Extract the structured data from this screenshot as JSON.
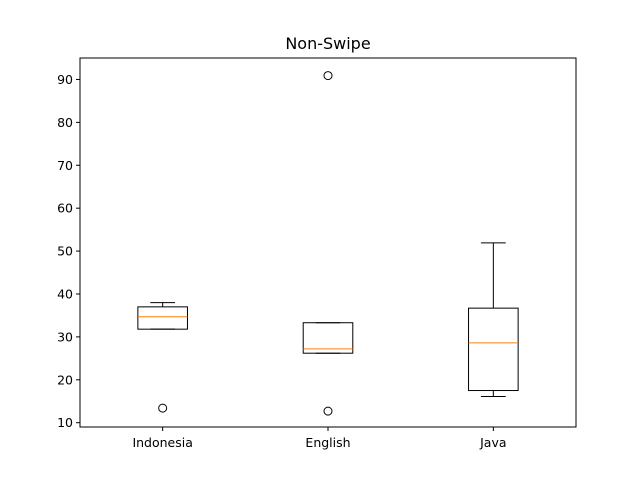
{
  "chart_data": {
    "type": "box",
    "title": "Non-Swipe",
    "xlabel": "",
    "ylabel": "",
    "categories": [
      "Indonesia",
      "English",
      "Java"
    ],
    "ylim": [
      9,
      95
    ],
    "yticks": [
      10,
      20,
      30,
      40,
      50,
      60,
      70,
      80,
      90
    ],
    "boxes": [
      {
        "name": "Indonesia",
        "whisker_low": 31.8,
        "q1": 31.8,
        "median": 34.7,
        "q3": 37.0,
        "whisker_high": 38.0,
        "outliers": [
          13.4
        ]
      },
      {
        "name": "English",
        "whisker_low": 26.2,
        "q1": 26.2,
        "median": 27.2,
        "q3": 33.3,
        "whisker_high": 33.3,
        "outliers": [
          12.7,
          90.9
        ]
      },
      {
        "name": "Java",
        "whisker_low": 16.1,
        "q1": 17.5,
        "median": 28.6,
        "q3": 36.7,
        "whisker_high": 51.9,
        "outliers": []
      }
    ],
    "colors": {
      "box": "#000000",
      "median": "#ff7f0e",
      "outlier": "#000000"
    },
    "grid": false,
    "legend": "none"
  }
}
